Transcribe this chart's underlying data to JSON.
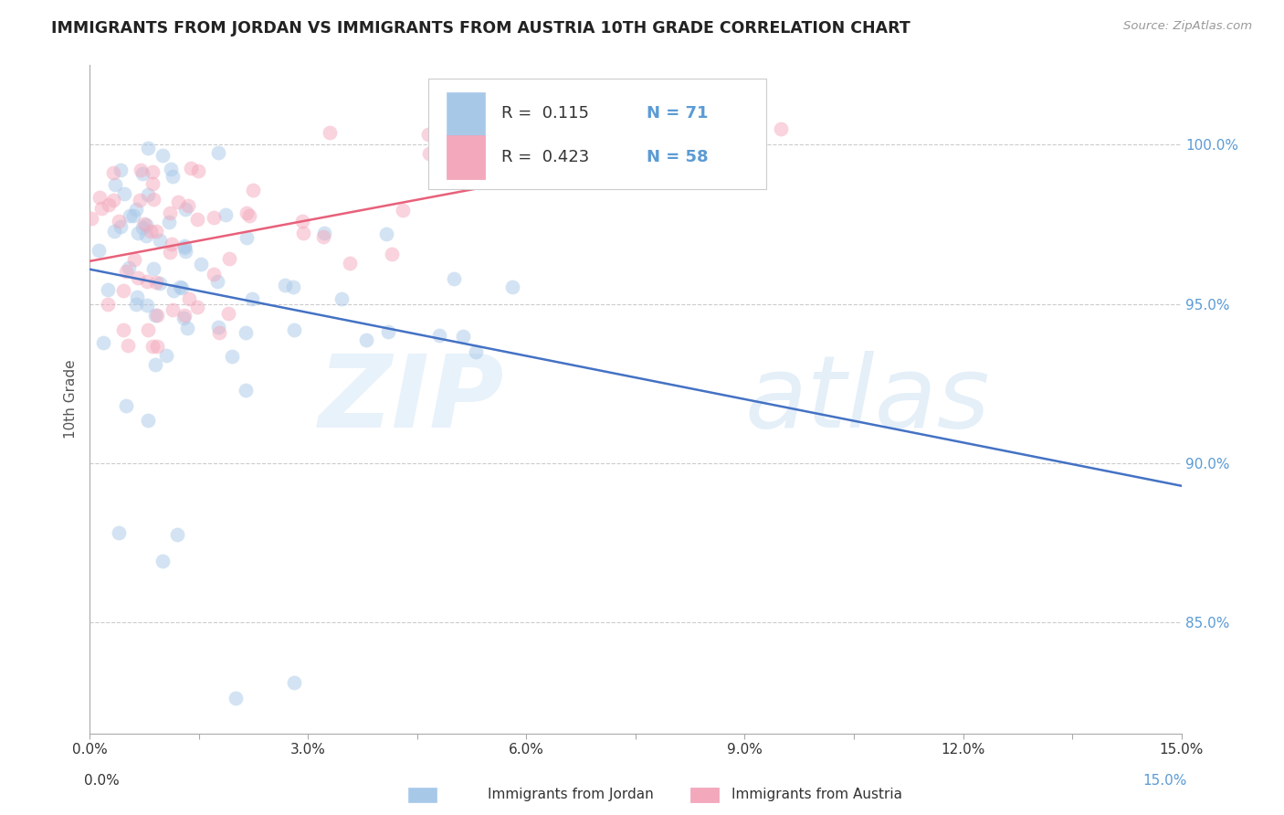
{
  "title": "IMMIGRANTS FROM JORDAN VS IMMIGRANTS FROM AUSTRIA 10TH GRADE CORRELATION CHART",
  "source_text": "Source: ZipAtlas.com",
  "ylabel": "10th Grade",
  "yaxis_labels": [
    "85.0%",
    "90.0%",
    "95.0%",
    "100.0%"
  ],
  "yaxis_values": [
    0.85,
    0.9,
    0.95,
    1.0
  ],
  "xmin": 0.0,
  "xmax": 0.15,
  "ymin": 0.815,
  "ymax": 1.025,
  "legend_r1": "R =  0.115",
  "legend_n1": "N = 71",
  "legend_r2": "R =  0.423",
  "legend_n2": "N = 58",
  "color_jordan": "#a8c8e8",
  "color_austria": "#f4a8bc",
  "color_jordan_line": "#4472c4",
  "color_austria_line": "#e8607a",
  "watermark_zip": "ZIP",
  "watermark_atlas": "atlas"
}
